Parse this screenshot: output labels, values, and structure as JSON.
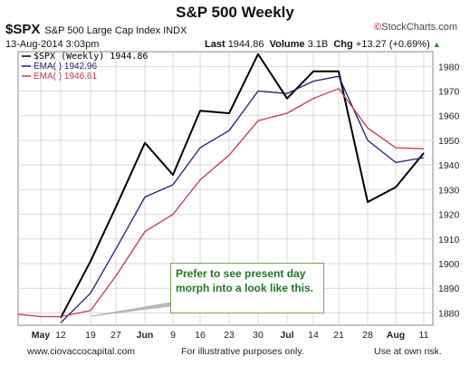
{
  "header": {
    "title": "S&P 500 Weekly",
    "brand_symbol": "©",
    "brand_text": "StockCharts.com",
    "symbol": "$SPX",
    "name": "S&P 500 Large Cap Index  INDX",
    "date": "13-Aug-2014 3:03pm",
    "last_label": "Last",
    "last_value": "1944.86",
    "volume_label": "Volume",
    "volume_value": "3.1B",
    "chg_label": "Chg",
    "chg_value": "+13.27 (+0.69%)",
    "chg_arrow": "▲"
  },
  "footer": {
    "website": "www.ciovaccocapital.com",
    "disclaimer": "For illustrative purposes only.",
    "risk": "Use at own risk."
  },
  "annotation": {
    "text": "Prefer to see present day morph into a look like this."
  },
  "colors": {
    "price": "#000000",
    "ema_fast": "#1f1f7a",
    "ema_slow": "#cc3355",
    "grid": "#d9d9d9",
    "annotation_text": "#1e7a1e"
  },
  "chart_data": {
    "type": "line",
    "x": [
      "Apr 28",
      "May 5",
      "May 12",
      "May 19",
      "May 27",
      "Jun 2",
      "Jun 9",
      "Jun 16",
      "Jun 23",
      "Jun 30",
      "Jul 7",
      "Jul 14",
      "Jul 21",
      "Jul 28",
      "Aug 4",
      "Aug 11"
    ],
    "x_tick_labels": [
      "May",
      "12",
      "19",
      "27",
      "Jun",
      "9",
      "16",
      "23",
      "30",
      "Jul",
      "14",
      "21",
      "28",
      "Aug",
      "11"
    ],
    "y_ticks": [
      1880,
      1890,
      1900,
      1910,
      1920,
      1930,
      1940,
      1950,
      1960,
      1970,
      1980
    ],
    "ylim": [
      1875,
      1986
    ],
    "grid": true,
    "legend_position": "top-left",
    "series": [
      {
        "name": "$SPX (Weekly) 1944.86",
        "color": "#000000",
        "values": [
          null,
          null,
          1878,
          1901,
          1923,
          1949,
          1936,
          1962,
          1961,
          1985,
          1967,
          1978,
          1978,
          1925,
          1931,
          1944.86
        ]
      },
      {
        "name": "EMA(  ) 1942.96",
        "color": "#1f1f7a",
        "values": [
          null,
          null,
          1876,
          1888,
          1906,
          1927,
          1932,
          1947,
          1954,
          1970,
          1969,
          1974,
          1976,
          1950,
          1941,
          1943
        ]
      },
      {
        "name": "EMA(  ) 1946.61",
        "color": "#cc3355",
        "values": [
          1879.5,
          1878.5,
          1878.5,
          1881,
          1895,
          1913,
          1920,
          1934,
          1944,
          1958,
          1961,
          1967,
          1971,
          1955,
          1947,
          1946.6
        ]
      }
    ]
  }
}
